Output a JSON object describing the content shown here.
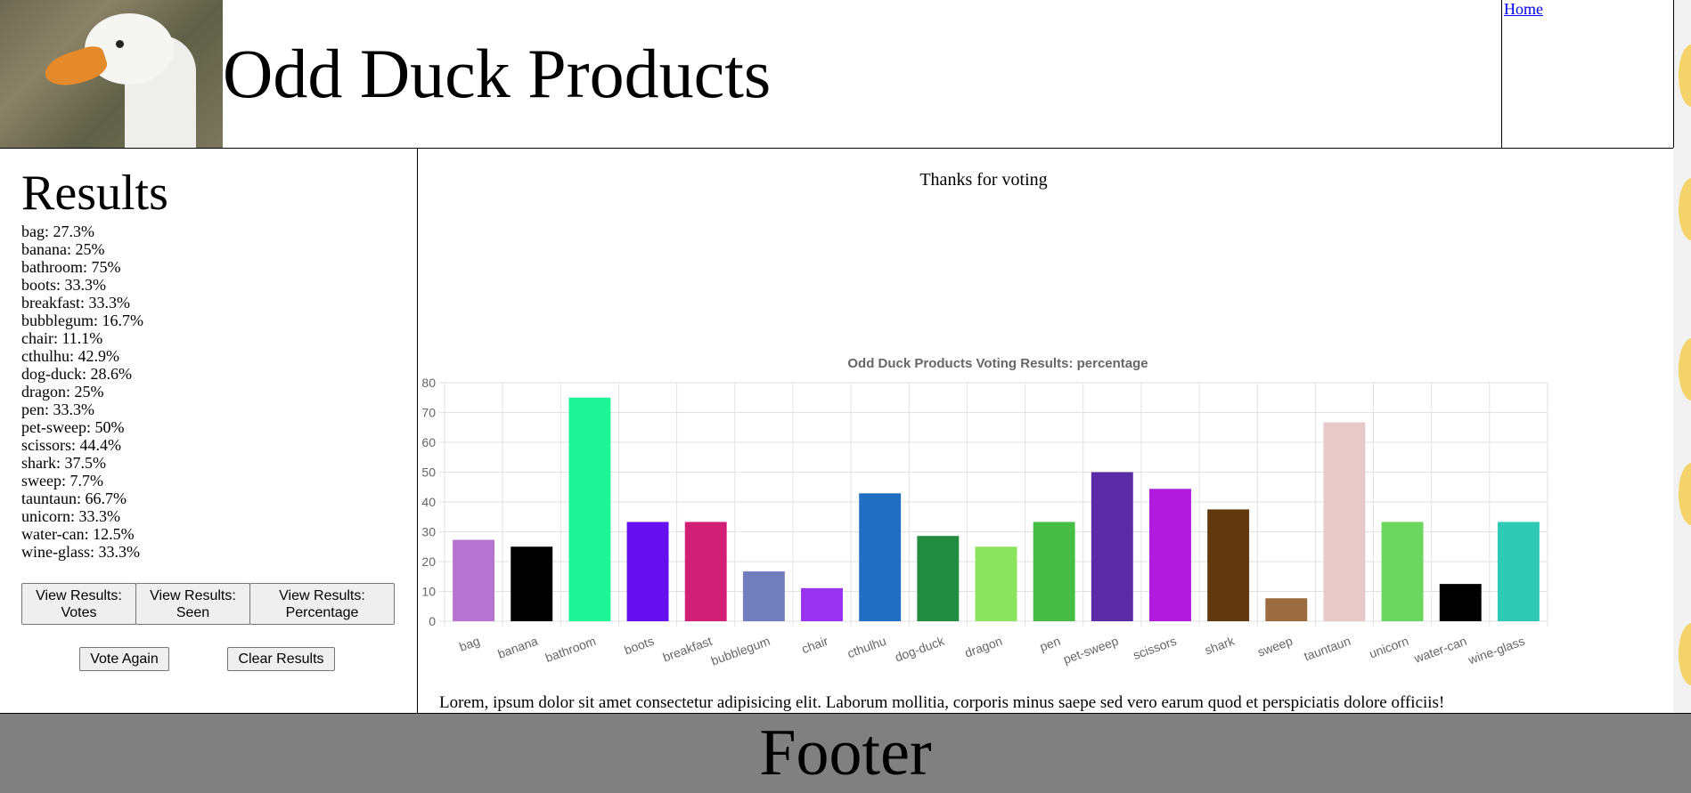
{
  "header": {
    "title": "Odd Duck Products",
    "nav_home": "Home"
  },
  "results": {
    "title": "Results",
    "items": [
      "bag: 27.3%",
      "banana: 25%",
      "bathroom: 75%",
      "boots: 33.3%",
      "breakfast: 33.3%",
      "bubblegum: 16.7%",
      "chair: 11.1%",
      "cthulhu: 42.9%",
      "dog-duck: 28.6%",
      "dragon: 25%",
      "pen: 33.3%",
      "pet-sweep: 50%",
      "scissors: 44.4%",
      "shark: 37.5%",
      "sweep: 7.7%",
      "tauntaun: 66.7%",
      "unicorn: 33.3%",
      "water-can: 12.5%",
      "wine-glass: 33.3%"
    ],
    "buttons": {
      "votes": "View Results: Votes",
      "seen": "View Results: Seen",
      "percentage": "View Results: Percentage",
      "vote_again": "Vote Again",
      "clear": "Clear Results"
    }
  },
  "main": {
    "thanks": "Thanks for voting",
    "lorem": "Lorem, ipsum dolor sit amet consectetur adipisicing elit. Laborum mollitia, corporis minus saepe sed vero earum quod et perspiciatis dolore officiis!"
  },
  "footer": {
    "text": "Footer"
  },
  "chart_data": {
    "type": "bar",
    "title": "Odd Duck Products Voting Results: percentage",
    "categories": [
      "bag",
      "banana",
      "bathroom",
      "boots",
      "breakfast",
      "bubblegum",
      "chair",
      "cthulhu",
      "dog-duck",
      "dragon",
      "pen",
      "pet-sweep",
      "scissors",
      "shark",
      "sweep",
      "tauntaun",
      "unicorn",
      "water-can",
      "wine-glass"
    ],
    "values": [
      27.3,
      25,
      75,
      33.3,
      33.3,
      16.7,
      11.1,
      42.9,
      28.6,
      25,
      33.3,
      50,
      44.4,
      37.5,
      7.7,
      66.7,
      33.3,
      12.5,
      33.3
    ],
    "colors": [
      "#b673cf",
      "#000000",
      "#1ef599",
      "#6610f2",
      "#d01f74",
      "#717dbc",
      "#9a33f0",
      "#226ec3",
      "#228c40",
      "#8be35e",
      "#48bd45",
      "#5a2ba4",
      "#b11bdd",
      "#60390f",
      "#9b6c40",
      "#e8c9ca",
      "#6cd760",
      "#000000",
      "#2ecab6"
    ],
    "ylim": [
      0,
      80
    ],
    "yticks": [
      0,
      10,
      20,
      30,
      40,
      50,
      60,
      70,
      80
    ],
    "grid": true,
    "legend": "none"
  }
}
